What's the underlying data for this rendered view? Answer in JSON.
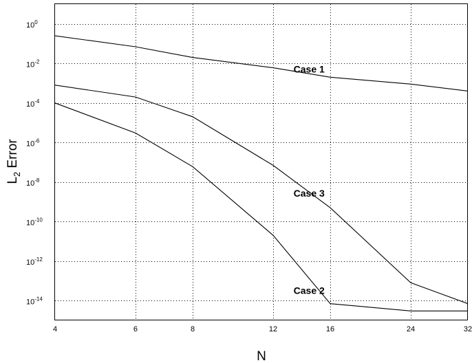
{
  "chart_data": {
    "type": "line",
    "x_scale": "log",
    "y_scale": "log",
    "grid": true,
    "xlabel": "N",
    "ylabel": {
      "base": "L",
      "sub": "2",
      "rest": " Error"
    },
    "xlim": [
      4,
      32
    ],
    "ylim": [
      1e-15,
      10
    ],
    "x_ticks": [
      {
        "value": 4,
        "label": "4"
      },
      {
        "value": 6,
        "label": "6"
      },
      {
        "value": 8,
        "label": "8"
      },
      {
        "value": 12,
        "label": "12"
      },
      {
        "value": 16,
        "label": "16"
      },
      {
        "value": 24,
        "label": "24"
      },
      {
        "value": 32,
        "label": "32"
      }
    ],
    "y_ticks": [
      {
        "value": 1.0,
        "base": "10",
        "exp": "0"
      },
      {
        "value": 0.01,
        "base": "10",
        "exp": "-2"
      },
      {
        "value": 0.0001,
        "base": "10",
        "exp": "-4"
      },
      {
        "value": 1e-06,
        "base": "10",
        "exp": "-6"
      },
      {
        "value": 1e-08,
        "base": "10",
        "exp": "-8"
      },
      {
        "value": 1e-10,
        "base": "10",
        "exp": "-10"
      },
      {
        "value": 1e-12,
        "base": "10",
        "exp": "-12"
      },
      {
        "value": 1e-14,
        "base": "10",
        "exp": "-14"
      }
    ],
    "x": [
      4,
      6,
      8,
      12,
      16,
      24,
      32
    ],
    "series": [
      {
        "name": "Case 1",
        "values": [
          0.25,
          0.07,
          0.02,
          0.006,
          0.002,
          0.0009,
          0.0004
        ]
      },
      {
        "name": "Case 2",
        "values": [
          0.0001,
          3e-06,
          6e-08,
          2e-11,
          7e-15,
          3e-15,
          3e-15
        ]
      },
      {
        "name": "Case 3",
        "values": [
          0.0008,
          0.0002,
          2e-05,
          7e-08,
          5e-10,
          8e-14,
          7e-15
        ]
      }
    ],
    "annotations": [
      {
        "text": "Case 1",
        "x": 13.3,
        "y": 0.0035
      },
      {
        "text": "Case 3",
        "x": 13.3,
        "y": 1.8e-09
      },
      {
        "text": "Case 2",
        "x": 13.3,
        "y": 2.2e-14
      }
    ]
  }
}
